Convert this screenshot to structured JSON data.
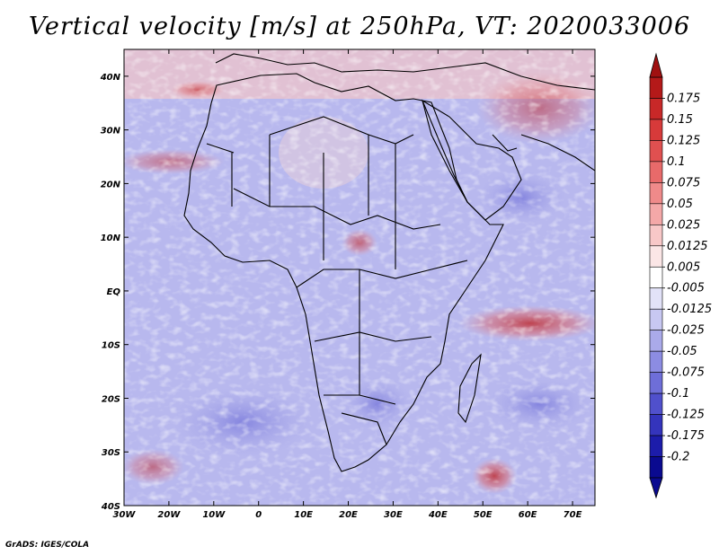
{
  "title": "Vertical velocity [m/s] at 250hPa, VT: 2020033006",
  "footer": "GrADS: IGES/COLA",
  "map": {
    "projection": "latlon",
    "lon_range": [
      -30,
      75
    ],
    "lat_range": [
      -40,
      45
    ],
    "x_ticks": [
      "30W",
      "20W",
      "10W",
      "0",
      "10E",
      "20E",
      "30E",
      "40E",
      "50E",
      "60E",
      "70E"
    ],
    "y_ticks": [
      "40N",
      "30N",
      "20N",
      "10N",
      "EQ",
      "10S",
      "20S",
      "30S",
      "40S"
    ]
  },
  "colorbar": {
    "labels": [
      "0.175",
      "0.15",
      "0.125",
      "0.1",
      "0.075",
      "0.05",
      "0.025",
      "0.0125",
      "0.005",
      "-0.005",
      "-0.0125",
      "-0.025",
      "-0.05",
      "-0.075",
      "-0.1",
      "-0.125",
      "-0.175",
      "-0.2"
    ],
    "colors": [
      "#b41919",
      "#c82828",
      "#d73a3a",
      "#e05050",
      "#e86a6a",
      "#ef8a8a",
      "#f4a8a8",
      "#f8c8c8",
      "#fbe6e6",
      "#ffffff",
      "#e2e2f8",
      "#c8c8f2",
      "#aaaaea",
      "#8c8ce2",
      "#6e6ed8",
      "#5050cc",
      "#3434bc",
      "#1c1caa",
      "#0a0a90"
    ],
    "top_color": "#a01010",
    "bottom_color": "#0a0a90"
  }
}
